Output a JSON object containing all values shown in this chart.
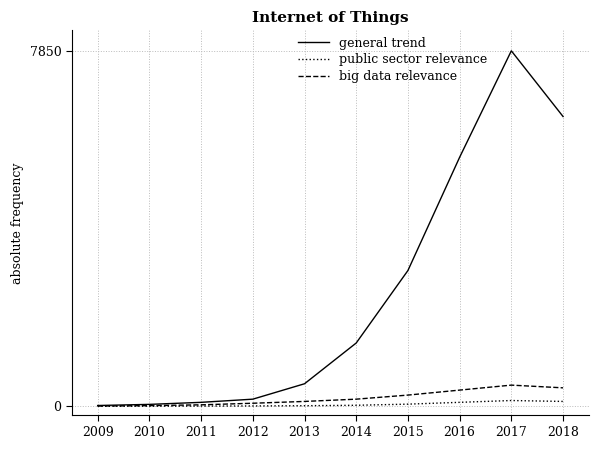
{
  "title": "Internet of Things",
  "ylabel": "absolute frequency",
  "years": [
    2009,
    2010,
    2011,
    2012,
    2013,
    2014,
    2015,
    2016,
    2017,
    2018
  ],
  "general_trend": [
    20,
    45,
    90,
    160,
    500,
    1400,
    3000,
    5500,
    7850,
    6400
  ],
  "public_sector": [
    3,
    5,
    8,
    10,
    15,
    25,
    50,
    90,
    130,
    110
  ],
  "big_data": [
    8,
    18,
    35,
    70,
    110,
    160,
    250,
    360,
    470,
    410
  ],
  "ylim": [
    -200,
    8300
  ],
  "yticks": [
    0,
    7850
  ],
  "xlim": [
    2008.5,
    2018.5
  ],
  "background_color": "#ffffff",
  "grid_color": "#bbbbbb",
  "line_color": "#000000",
  "legend_entries": [
    "general trend",
    "public sector relevance",
    "big data relevance"
  ],
  "title_fontsize": 11,
  "label_fontsize": 9,
  "tick_fontsize": 9
}
